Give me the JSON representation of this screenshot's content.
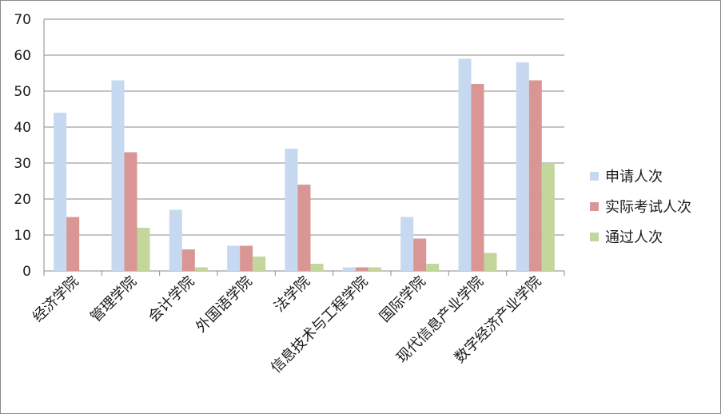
{
  "chart_data": {
    "type": "bar",
    "title": "",
    "xlabel": "",
    "ylabel": "",
    "ylim": [
      0,
      70
    ],
    "yticks": [
      0,
      10,
      20,
      30,
      40,
      50,
      60,
      70
    ],
    "grid": true,
    "legend_position": "right",
    "categories": [
      "经济学院",
      "管理学院",
      "会计学院",
      "外国语学院",
      "法学院",
      "信息技术与工程学院",
      "国际学院",
      "现代信息产业学院",
      "数字经济产业学院"
    ],
    "series": [
      {
        "name": "申请人次",
        "color": "#c6d9f1",
        "values": [
          44,
          53,
          17,
          7,
          34,
          1,
          15,
          59,
          58
        ]
      },
      {
        "name": "实际考试人次",
        "color": "#d99694",
        "values": [
          15,
          33,
          6,
          7,
          24,
          1,
          9,
          52,
          53
        ]
      },
      {
        "name": "通过人次",
        "color": "#c3d69b",
        "values": [
          0,
          12,
          1,
          4,
          2,
          1,
          2,
          5,
          30
        ]
      }
    ]
  }
}
